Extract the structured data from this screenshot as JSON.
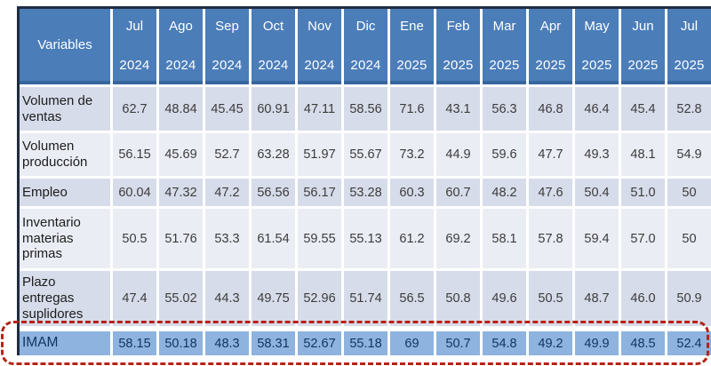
{
  "colors": {
    "header_blue": "#4b7db9",
    "header_border_blue": "#38669e",
    "outer_border": "#202c40",
    "row_shade_a": "#d7dcea",
    "row_shade_b": "#eaedf4",
    "imam_row_blue": "#8fb3df",
    "imam_text_navy": "#11355e",
    "highlight_dashed_red": "#b52318"
  },
  "chart_data": {
    "type": "table",
    "title": "",
    "corner_label": "Variables",
    "columns": [
      {
        "month": "Jul",
        "year": "2024"
      },
      {
        "month": "Ago",
        "year": "2024"
      },
      {
        "month": "Sep",
        "year": "2024"
      },
      {
        "month": "Oct",
        "year": "2024"
      },
      {
        "month": "Nov",
        "year": "2024"
      },
      {
        "month": "Dic",
        "year": "2024"
      },
      {
        "month": "Ene",
        "year": "2025"
      },
      {
        "month": "Feb",
        "year": "2025"
      },
      {
        "month": "Mar",
        "year": "2025"
      },
      {
        "month": "Apr",
        "year": "2025"
      },
      {
        "month": "May",
        "year": "2025"
      },
      {
        "month": "Jun",
        "year": "2025"
      },
      {
        "month": "Jul",
        "year": "2025"
      }
    ],
    "rows": [
      {
        "label": "Volumen de ventas",
        "values": [
          "62.7",
          "48.84",
          "45.45",
          "60.91",
          "47.11",
          "58.56",
          "71.6",
          "43.1",
          "56.3",
          "46.8",
          "46.4",
          "45.4",
          "52.8"
        ]
      },
      {
        "label": "Volumen producción",
        "values": [
          "56.15",
          "45.69",
          "52.7",
          "63.28",
          "51.97",
          "55.67",
          "73.2",
          "44.9",
          "59.6",
          "47.7",
          "49.3",
          "48.1",
          "54.9"
        ]
      },
      {
        "label": "Empleo",
        "values": [
          "60.04",
          "47.32",
          "47.2",
          "56.56",
          "56.17",
          "53.28",
          "60.3",
          "60.7",
          "48.2",
          "47.6",
          "50.4",
          "51.0",
          "50"
        ]
      },
      {
        "label": "Inventario materias primas",
        "values": [
          "50.5",
          "51.76",
          "53.3",
          "61.54",
          "59.55",
          "55.13",
          "61.2",
          "69.2",
          "58.1",
          "57.8",
          "59.4",
          "57.0",
          "50"
        ]
      },
      {
        "label": "Plazo entregas suplidores",
        "values": [
          "47.4",
          "55.02",
          "44.3",
          "49.75",
          "52.96",
          "51.74",
          "56.5",
          "50.8",
          "49.6",
          "50.5",
          "48.7",
          "46.0",
          "50.9"
        ]
      }
    ],
    "highlight_row": {
      "label": "IMAM",
      "values": [
        "58.15",
        "50.18",
        "48.3",
        "58.31",
        "52.67",
        "55.18",
        "69",
        "50.7",
        "54.8",
        "49.2",
        "49.9",
        "48.5",
        "52.4"
      ]
    }
  }
}
